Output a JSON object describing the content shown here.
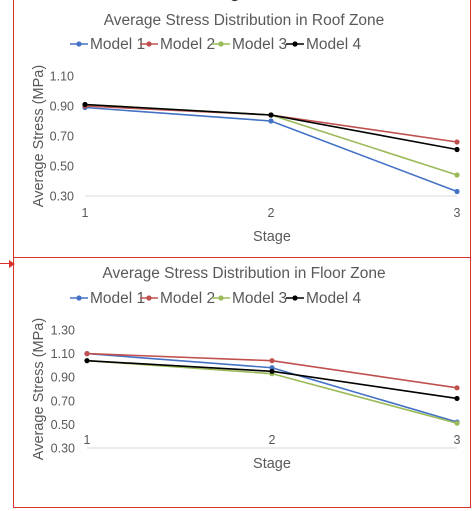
{
  "chart_data": [
    {
      "type": "line",
      "title": "Average Stress Distribution in Roof Zone",
      "xlabel": "Stage",
      "ylabel": "Average Stress (MPa)",
      "categories": [
        "1",
        "2",
        "3"
      ],
      "ylim": [
        0.3,
        1.1
      ],
      "yticks": [
        "0.30",
        "0.50",
        "0.70",
        "0.90",
        "1.10"
      ],
      "grid": false,
      "legend": "top",
      "series": [
        {
          "name": "Model 1",
          "color": "#4472c4",
          "values": [
            0.89,
            0.8,
            0.33
          ]
        },
        {
          "name": "Model 2",
          "color": "#c0504d",
          "values": [
            0.9,
            0.84,
            0.66
          ]
        },
        {
          "name": "Model 3",
          "color": "#9bbb59",
          "values": [
            0.91,
            0.84,
            0.44
          ]
        },
        {
          "name": "Model 4",
          "color": "#000000",
          "values": [
            0.91,
            0.84,
            0.61
          ]
        }
      ]
    },
    {
      "type": "line",
      "title": "Average Stress Distribution in Floor Zone",
      "xlabel": "Stage",
      "ylabel": "Average Stress (MPa)",
      "categories": [
        "1",
        "2",
        "3"
      ],
      "ylim": [
        0.3,
        1.3
      ],
      "yticks": [
        "0.30",
        "0.50",
        "0.70",
        "0.90",
        "1.10",
        "1.30"
      ],
      "grid": false,
      "legend": "top",
      "series": [
        {
          "name": "Model 1",
          "color": "#4472c4",
          "values": [
            1.1,
            0.98,
            0.52
          ]
        },
        {
          "name": "Model 2",
          "color": "#c0504d",
          "values": [
            1.1,
            1.04,
            0.81
          ]
        },
        {
          "name": "Model 3",
          "color": "#9bbb59",
          "values": [
            1.04,
            0.93,
            0.51
          ]
        },
        {
          "name": "Model 4",
          "color": "#000000",
          "values": [
            1.04,
            0.95,
            0.72
          ]
        }
      ]
    }
  ]
}
